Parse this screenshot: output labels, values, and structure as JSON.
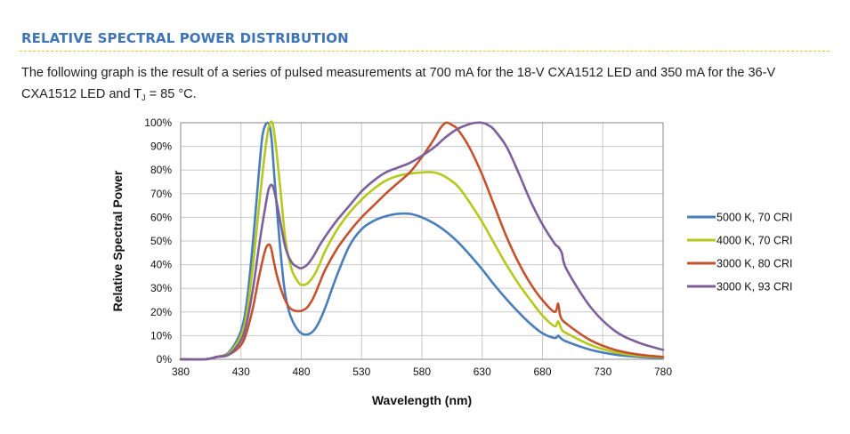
{
  "section": {
    "heading": "RELATIVE SPECTRAL POWER DISTRIBUTION",
    "description_a": "The following graph is the result of a series of pulsed measurements at 700 mA for the 18-V CXA1512 LED and 350 mA for the 36-V CXA1512 LED and T",
    "description_sub": "J",
    "description_b": " = 85 °C."
  },
  "chart_data": {
    "type": "line",
    "title": "",
    "xlabel": "Wavelength (nm)",
    "ylabel": "Relative Spectral Power",
    "xlim": [
      380,
      780
    ],
    "ylim": [
      0,
      100
    ],
    "x_ticks": [
      "380",
      "430",
      "480",
      "530",
      "580",
      "630",
      "680",
      "730",
      "780"
    ],
    "y_ticks": [
      "0%",
      "10%",
      "20%",
      "30%",
      "40%",
      "50%",
      "60%",
      "70%",
      "80%",
      "90%",
      "100%"
    ],
    "grid": true,
    "legend_position": "right",
    "series": [
      {
        "name": "5000 K, 70 CRI",
        "color": "#4a7ebb",
        "x": [
          380,
          400,
          410,
          420,
          430,
          435,
          440,
          445,
          448,
          452,
          455,
          458,
          462,
          466,
          470,
          475,
          480,
          485,
          490,
          495,
          500,
          510,
          520,
          530,
          540,
          550,
          560,
          570,
          580,
          590,
          600,
          610,
          620,
          630,
          640,
          650,
          660,
          670,
          680,
          690,
          693,
          695,
          700,
          720,
          740,
          760,
          780
        ],
        "y": [
          0,
          0,
          1,
          3,
          12,
          25,
          50,
          80,
          95,
          100,
          95,
          75,
          50,
          30,
          20,
          14,
          11,
          10.5,
          12,
          16,
          22,
          36,
          48,
          55,
          58.5,
          60.5,
          61.5,
          61.5,
          60,
          57.5,
          54,
          49.5,
          44,
          38,
          31.5,
          25.5,
          20,
          15,
          11,
          9,
          10,
          9,
          7.5,
          4,
          2,
          1,
          0.5
        ]
      },
      {
        "name": "4000 K, 70 CRI",
        "color": "#b5c91c",
        "x": [
          380,
          400,
          410,
          420,
          430,
          435,
          440,
          445,
          450,
          453,
          456,
          459,
          463,
          467,
          472,
          477,
          480,
          485,
          490,
          495,
          500,
          510,
          520,
          530,
          540,
          550,
          560,
          570,
          580,
          590,
          600,
          610,
          620,
          630,
          640,
          650,
          660,
          670,
          680,
          690,
          693,
          696,
          700,
          720,
          740,
          760,
          780
        ],
        "y": [
          0,
          0,
          1,
          2.5,
          10,
          20,
          40,
          65,
          88,
          98,
          100,
          90,
          70,
          50,
          38,
          33,
          31.5,
          32,
          35,
          40,
          46,
          55,
          62,
          67.5,
          72,
          75.5,
          77.5,
          78.5,
          79,
          79,
          77,
          73,
          66,
          58,
          49,
          40,
          32,
          25,
          18.5,
          14,
          16,
          12.5,
          11,
          6,
          3,
          1.5,
          0.8
        ]
      },
      {
        "name": "3000 K, 80 CRI",
        "color": "#c5522f",
        "x": [
          380,
          400,
          410,
          420,
          430,
          435,
          440,
          445,
          450,
          453,
          455,
          457,
          460,
          465,
          470,
          475,
          480,
          485,
          490,
          495,
          500,
          510,
          520,
          530,
          540,
          550,
          560,
          570,
          580,
          590,
          595,
          600,
          605,
          610,
          620,
          630,
          640,
          650,
          660,
          670,
          680,
          690,
          693,
          695,
          700,
          720,
          740,
          760,
          780
        ],
        "y": [
          0,
          0,
          1,
          2,
          6,
          12,
          22,
          35,
          46,
          48.5,
          47,
          42,
          35,
          27,
          22,
          20.5,
          20.5,
          22,
          26,
          32,
          38,
          47,
          54,
          60,
          65,
          70,
          74.5,
          79,
          85.5,
          93,
          97.5,
          100,
          99,
          97,
          89,
          78,
          65,
          52,
          41,
          32,
          25,
          20,
          23.5,
          18,
          15,
          8,
          4,
          2,
          1
        ]
      },
      {
        "name": "3000 K, 93 CRI",
        "color": "#7e5f9e",
        "x": [
          380,
          400,
          410,
          420,
          430,
          435,
          440,
          445,
          450,
          453,
          456,
          459,
          463,
          467,
          472,
          477,
          480,
          485,
          490,
          495,
          500,
          510,
          520,
          530,
          540,
          550,
          560,
          570,
          580,
          590,
          600,
          610,
          620,
          625,
          630,
          635,
          640,
          650,
          660,
          670,
          680,
          690,
          693,
          696,
          700,
          720,
          740,
          760,
          780
        ],
        "y": [
          0,
          0,
          1,
          2,
          8,
          16,
          30,
          48,
          64,
          72,
          73.5,
          68,
          57,
          47,
          41,
          39,
          38.5,
          40,
          43.5,
          48,
          52,
          59,
          65,
          71,
          75.5,
          79,
          81,
          83,
          86,
          89.5,
          94,
          97.5,
          99.5,
          100,
          100,
          99,
          97,
          90,
          79,
          67,
          57,
          49,
          47.5,
          45,
          38,
          22,
          12,
          7,
          4
        ]
      }
    ]
  }
}
